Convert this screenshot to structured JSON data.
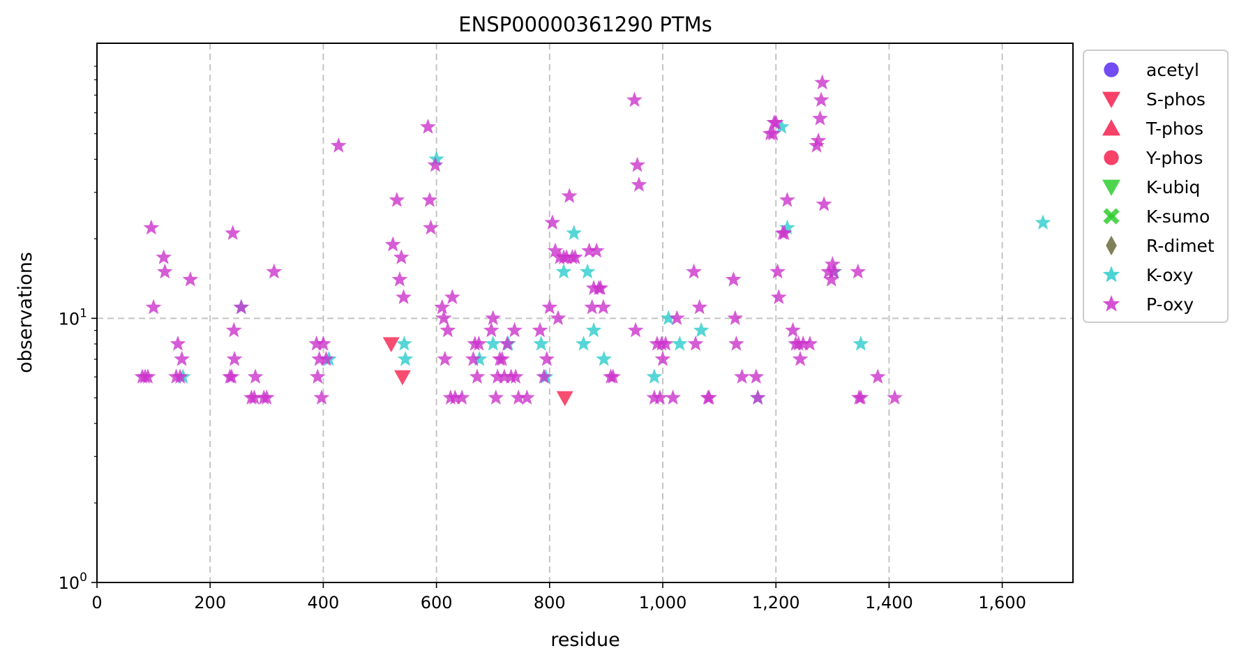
{
  "chart_data": {
    "type": "scatter",
    "title": "ENSP00000361290 PTMs",
    "xlabel": "residue",
    "ylabel": "observations",
    "xlim": [
      0,
      1725
    ],
    "ylim": [
      1,
      110
    ],
    "yscale": "log",
    "grid": true,
    "legend_position": "outside-right",
    "x_ticks": [
      0,
      200,
      400,
      600,
      800,
      1000,
      1200,
      1400,
      1600
    ],
    "x_tick_labels": [
      "0",
      "200",
      "400",
      "600",
      "800",
      "1,000",
      "1,200",
      "1,400",
      "1,600"
    ],
    "y_ticks": [
      {
        "value": 1,
        "base": "10",
        "exp": "0"
      },
      {
        "value": 10,
        "base": "10",
        "exp": "1"
      }
    ],
    "series": [
      {
        "name": "acetyl",
        "marker": "circle",
        "color": "#5a2cf0",
        "points": []
      },
      {
        "name": "S-phos",
        "marker": "triangle-down",
        "color": "#f5204e",
        "points": [
          [
            520,
            8
          ],
          [
            540,
            6
          ],
          [
            827,
            5
          ]
        ]
      },
      {
        "name": "T-phos",
        "marker": "triangle-up",
        "color": "#f5204e",
        "points": []
      },
      {
        "name": "Y-phos",
        "marker": "circle",
        "color": "#f5204e",
        "points": []
      },
      {
        "name": "K-ubiq",
        "marker": "triangle-down",
        "color": "#2fcc2f",
        "points": []
      },
      {
        "name": "K-sumo",
        "marker": "x",
        "color": "#2fcc2f",
        "points": []
      },
      {
        "name": "R-dimet",
        "marker": "diamond",
        "color": "#6b6b3c",
        "points": []
      },
      {
        "name": "K-oxy",
        "marker": "star",
        "color": "#2ccccc",
        "points": [
          [
            152,
            6
          ],
          [
            255,
            11
          ],
          [
            410,
            7
          ],
          [
            543,
            8
          ],
          [
            545,
            7
          ],
          [
            600,
            40
          ],
          [
            676,
            7
          ],
          [
            700,
            8
          ],
          [
            727,
            8
          ],
          [
            785,
            8
          ],
          [
            793,
            6
          ],
          [
            825,
            15
          ],
          [
            843,
            21
          ],
          [
            860,
            8
          ],
          [
            867,
            15
          ],
          [
            878,
            9
          ],
          [
            896,
            7
          ],
          [
            985,
            6
          ],
          [
            1010,
            10
          ],
          [
            1030,
            8
          ],
          [
            1068,
            9
          ],
          [
            1168,
            5
          ],
          [
            1210,
            53
          ],
          [
            1220,
            22
          ],
          [
            1303,
            15
          ],
          [
            1350,
            8
          ],
          [
            1672,
            23
          ]
        ]
      },
      {
        "name": "P-oxy",
        "marker": "star",
        "color": "#cc33cc",
        "points": [
          [
            80,
            6
          ],
          [
            85,
            6
          ],
          [
            90,
            6
          ],
          [
            96,
            22
          ],
          [
            100,
            11
          ],
          [
            118,
            17
          ],
          [
            120,
            15
          ],
          [
            140,
            6
          ],
          [
            143,
            8
          ],
          [
            147,
            6
          ],
          [
            150,
            7
          ],
          [
            165,
            14
          ],
          [
            235,
            6
          ],
          [
            238,
            6
          ],
          [
            240,
            21
          ],
          [
            242,
            9
          ],
          [
            243,
            7
          ],
          [
            255,
            11
          ],
          [
            273,
            5
          ],
          [
            278,
            5
          ],
          [
            280,
            6
          ],
          [
            295,
            5
          ],
          [
            300,
            5
          ],
          [
            313,
            15
          ],
          [
            388,
            8
          ],
          [
            390,
            6
          ],
          [
            393,
            7
          ],
          [
            397,
            5
          ],
          [
            400,
            8
          ],
          [
            405,
            7
          ],
          [
            427,
            45
          ],
          [
            523,
            19
          ],
          [
            530,
            28
          ],
          [
            535,
            14
          ],
          [
            538,
            17
          ],
          [
            542,
            12
          ],
          [
            585,
            53
          ],
          [
            588,
            28
          ],
          [
            590,
            22
          ],
          [
            598,
            38
          ],
          [
            610,
            11
          ],
          [
            613,
            10
          ],
          [
            615,
            7
          ],
          [
            620,
            9
          ],
          [
            625,
            5
          ],
          [
            628,
            12
          ],
          [
            633,
            5
          ],
          [
            645,
            5
          ],
          [
            665,
            7
          ],
          [
            668,
            8
          ],
          [
            672,
            6
          ],
          [
            675,
            8
          ],
          [
            697,
            9
          ],
          [
            700,
            10
          ],
          [
            705,
            5
          ],
          [
            708,
            6
          ],
          [
            712,
            7
          ],
          [
            716,
            7
          ],
          [
            720,
            6
          ],
          [
            725,
            8
          ],
          [
            732,
            6
          ],
          [
            738,
            9
          ],
          [
            740,
            6
          ],
          [
            745,
            5
          ],
          [
            760,
            5
          ],
          [
            783,
            9
          ],
          [
            790,
            6
          ],
          [
            795,
            7
          ],
          [
            800,
            11
          ],
          [
            805,
            23
          ],
          [
            810,
            18
          ],
          [
            815,
            10
          ],
          [
            818,
            17
          ],
          [
            825,
            17
          ],
          [
            830,
            17
          ],
          [
            835,
            29
          ],
          [
            840,
            17
          ],
          [
            845,
            17
          ],
          [
            870,
            18
          ],
          [
            875,
            11
          ],
          [
            878,
            13
          ],
          [
            883,
            18
          ],
          [
            887,
            13
          ],
          [
            890,
            13
          ],
          [
            895,
            11
          ],
          [
            908,
            6
          ],
          [
            912,
            6
          ],
          [
            950,
            67
          ],
          [
            952,
            9
          ],
          [
            955,
            38
          ],
          [
            958,
            32
          ],
          [
            985,
            5
          ],
          [
            990,
            8
          ],
          [
            995,
            5
          ],
          [
            998,
            8
          ],
          [
            1000,
            7
          ],
          [
            1005,
            8
          ],
          [
            1018,
            5
          ],
          [
            1025,
            10
          ],
          [
            1055,
            15
          ],
          [
            1058,
            8
          ],
          [
            1065,
            11
          ],
          [
            1080,
            5
          ],
          [
            1082,
            5
          ],
          [
            1125,
            14
          ],
          [
            1128,
            10
          ],
          [
            1130,
            8
          ],
          [
            1140,
            6
          ],
          [
            1165,
            6
          ],
          [
            1168,
            5
          ],
          [
            1190,
            50
          ],
          [
            1195,
            50
          ],
          [
            1197,
            55
          ],
          [
            1200,
            55
          ],
          [
            1203,
            15
          ],
          [
            1205,
            12
          ],
          [
            1212,
            21
          ],
          [
            1215,
            21
          ],
          [
            1220,
            28
          ],
          [
            1230,
            9
          ],
          [
            1235,
            8
          ],
          [
            1240,
            8
          ],
          [
            1243,
            7
          ],
          [
            1248,
            8
          ],
          [
            1260,
            8
          ],
          [
            1272,
            45
          ],
          [
            1275,
            47
          ],
          [
            1278,
            57
          ],
          [
            1280,
            67
          ],
          [
            1282,
            78
          ],
          [
            1285,
            27
          ],
          [
            1293,
            15
          ],
          [
            1298,
            14
          ],
          [
            1300,
            16
          ],
          [
            1302,
            15
          ],
          [
            1345,
            15
          ],
          [
            1347,
            5
          ],
          [
            1350,
            5
          ],
          [
            1380,
            6
          ],
          [
            1410,
            5
          ]
        ]
      }
    ]
  }
}
